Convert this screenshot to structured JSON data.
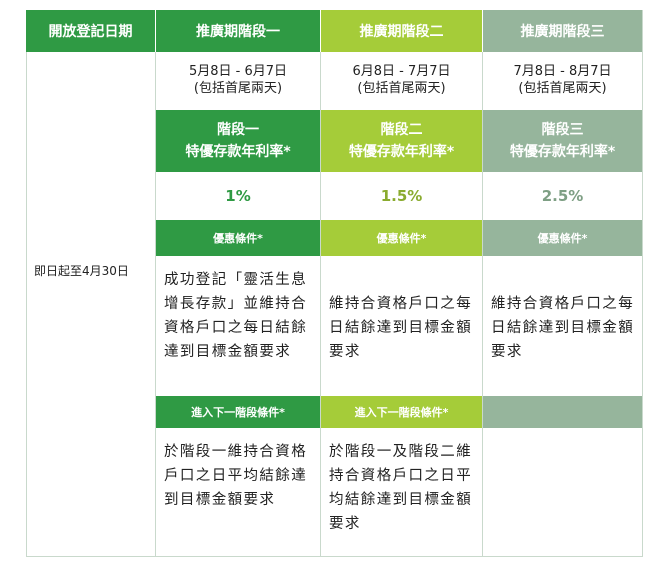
{
  "header": {
    "col0": "開放登記日期",
    "col1": "推廣期階段一",
    "col2": "推廣期階段二",
    "col3": "推廣期階段三"
  },
  "left_label": "即日起至4月30日",
  "stages": [
    {
      "date": "5月8日 - 6月7日",
      "date_note": "(包括首尾兩天)",
      "rate_title_1": "階段一",
      "rate_title_2": "特優存款年利率*",
      "rate": "1%",
      "cond_title": "優惠條件*",
      "cond_text": "成功登記「靈活生息　增長存款」並維持合資格戶口之每日結餘達到目標金額要求",
      "next_title": "進入下一階段條件*",
      "next_text": "於階段一維持合資格戶口之日平均結餘達到目標金額要求"
    },
    {
      "date": "6月8日 - 7月7日",
      "date_note": "(包括首尾兩天)",
      "rate_title_1": "階段二",
      "rate_title_2": "特優存款年利率*",
      "rate": "1.5%",
      "cond_title": "優惠條件*",
      "cond_text": "維持合資格戶口之每日結餘達到目標金額要求",
      "next_title": "進入下一階段條件*",
      "next_text": "於階段一及階段二維持合資格戶口之日平均結餘達到目標金額要求"
    },
    {
      "date": "7月8日 - 8月7日",
      "date_note": "(包括首尾兩天)",
      "rate_title_1": "階段三",
      "rate_title_2": "特優存款年利率*",
      "rate": "2.5%",
      "cond_title": "優惠條件*",
      "cond_text": "維持合資格戶口之每日結餘達到目標金額要求",
      "next_title": "",
      "next_text": ""
    }
  ],
  "colors": {
    "stage1": "#2f9a44",
    "stage2": "#a5cc39",
    "stage3": "#96b59c",
    "border": "#c9d9cc"
  }
}
